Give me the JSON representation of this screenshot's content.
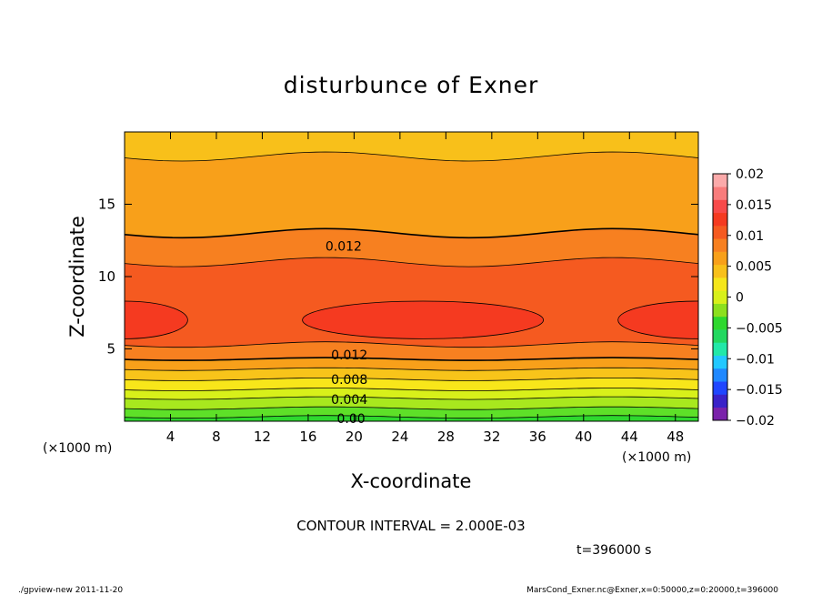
{
  "chart_data": {
    "type": "contour",
    "title": "disturbunce of Exner",
    "xlabel": "X-coordinate",
    "ylabel": "Z-coordinate",
    "x_unit_left": "(×1000 m)",
    "x_unit_right": "(×1000 m)",
    "xlim": [
      0,
      50
    ],
    "ylim": [
      0,
      20
    ],
    "x_ticks": [
      4,
      8,
      12,
      16,
      20,
      24,
      28,
      32,
      36,
      40,
      44,
      48
    ],
    "y_ticks": [
      5,
      10,
      15
    ],
    "contour_interval_text": "CONTOUR INTERVAL = 2.000E-03",
    "time_text": "t=396000 s",
    "contour_labels": [
      {
        "text": "0.012",
        "x": 17.5,
        "z": 12.1
      },
      {
        "text": "0.012",
        "x": 18.0,
        "z": 4.6
      },
      {
        "text": "0.008",
        "x": 18.0,
        "z": 2.9
      },
      {
        "text": "0.004",
        "x": 18.0,
        "z": 1.5
      },
      {
        "text": "0.00",
        "x": 18.5,
        "z": 0.2
      }
    ],
    "colorbar": {
      "tick_labels": [
        "0.02",
        "0.015",
        "0.01",
        "0.005",
        "0",
        "−0.005",
        "−0.01",
        "−0.015",
        "−0.02"
      ],
      "range": [
        -0.02,
        0.02
      ],
      "colors": [
        "#7a22aa",
        "#3a22c8",
        "#1f46ff",
        "#1f88ff",
        "#22c8ff",
        "#22e8a8",
        "#22d860",
        "#2ed82e",
        "#8ce01e",
        "#d8f01a",
        "#f5e61a",
        "#f8c01a",
        "#f8a01a",
        "#f78020",
        "#f55a20",
        "#f53a20",
        "#f84a4a",
        "#f87c7c",
        "#fbaaaa"
      ]
    },
    "field_bands": [
      {
        "z": [
          0.0,
          0.3
        ],
        "color": "#2ed82e"
      },
      {
        "z": [
          0.3,
          0.9
        ],
        "color": "#5ee028"
      },
      {
        "z": [
          0.9,
          1.6
        ],
        "color": "#a8e81e"
      },
      {
        "z": [
          1.6,
          2.2
        ],
        "color": "#d8f01a"
      },
      {
        "z": [
          2.2,
          2.9
        ],
        "color": "#f8e61a"
      },
      {
        "z": [
          2.9,
          3.6
        ],
        "color": "#f8c41a"
      },
      {
        "z": [
          3.6,
          4.3
        ],
        "color": "#f8a01a"
      },
      {
        "z": [
          4.3,
          5.3
        ],
        "color": "#f78020"
      },
      {
        "z": [
          5.3,
          11.0
        ],
        "color": "#f55a20"
      },
      {
        "z": [
          11.0,
          13.0
        ],
        "color": "#f78020"
      },
      {
        "z": [
          13.0,
          18.3
        ],
        "color": "#f8a01a"
      },
      {
        "z": [
          18.3,
          20.0
        ],
        "color": "#f8c01a"
      }
    ],
    "max_regions_color": "#f53a20"
  },
  "footer": {
    "left": "./gpview-new   2011-11-20",
    "right": "MarsCond_Exner.nc@Exner,x=0:50000,z=0:20000,t=396000"
  }
}
